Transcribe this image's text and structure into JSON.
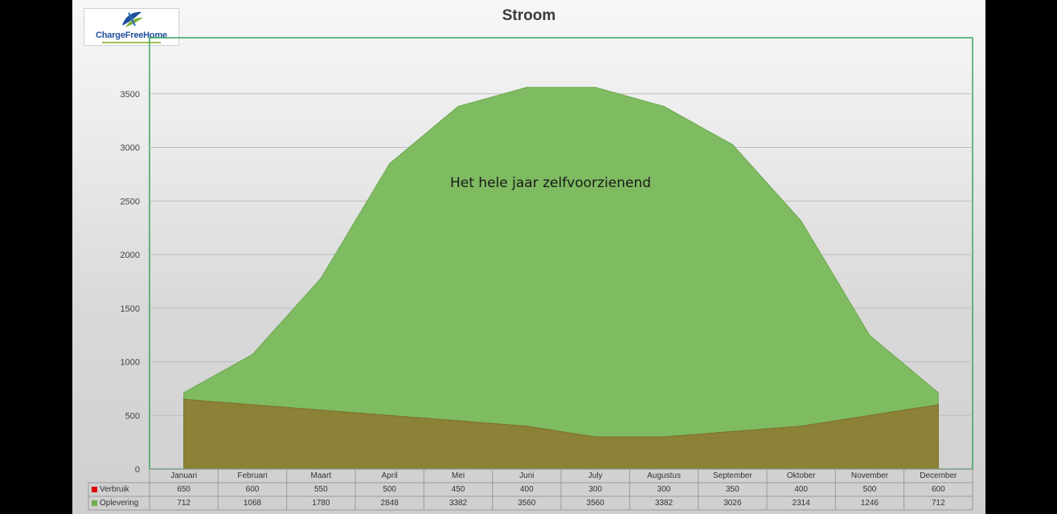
{
  "logo": {
    "text": "ChargeFreeHome"
  },
  "chart_data": {
    "type": "area",
    "title": "Stroom",
    "categories": [
      "Januari",
      "Februari",
      "Maart",
      "April",
      "Mei",
      "Juni",
      "July",
      "Augustus",
      "September",
      "Oktober",
      "November",
      "December"
    ],
    "series": [
      {
        "name": "Verbruik",
        "color": "#e00000",
        "fill": "#8c7d35",
        "values": [
          650,
          600,
          550,
          500,
          450,
          400,
          300,
          300,
          350,
          400,
          500,
          600
        ]
      },
      {
        "name": "Oplevering",
        "color": "#70ad47",
        "fill": "#7fbb61",
        "values": [
          712,
          1068,
          1780,
          2848,
          3382,
          3560,
          3560,
          3382,
          3026,
          2314,
          1246,
          712
        ]
      }
    ],
    "ylim": [
      0,
      4000
    ],
    "yticks": [
      0,
      500,
      1000,
      1500,
      2000,
      2500,
      3000,
      3500
    ],
    "grid": true,
    "legend": "data-table",
    "annotation": "Het hele jaar zelfvoorzienend"
  },
  "colors": {
    "plot_border": "#3aa45a",
    "gridline": "#bdbdbd"
  }
}
